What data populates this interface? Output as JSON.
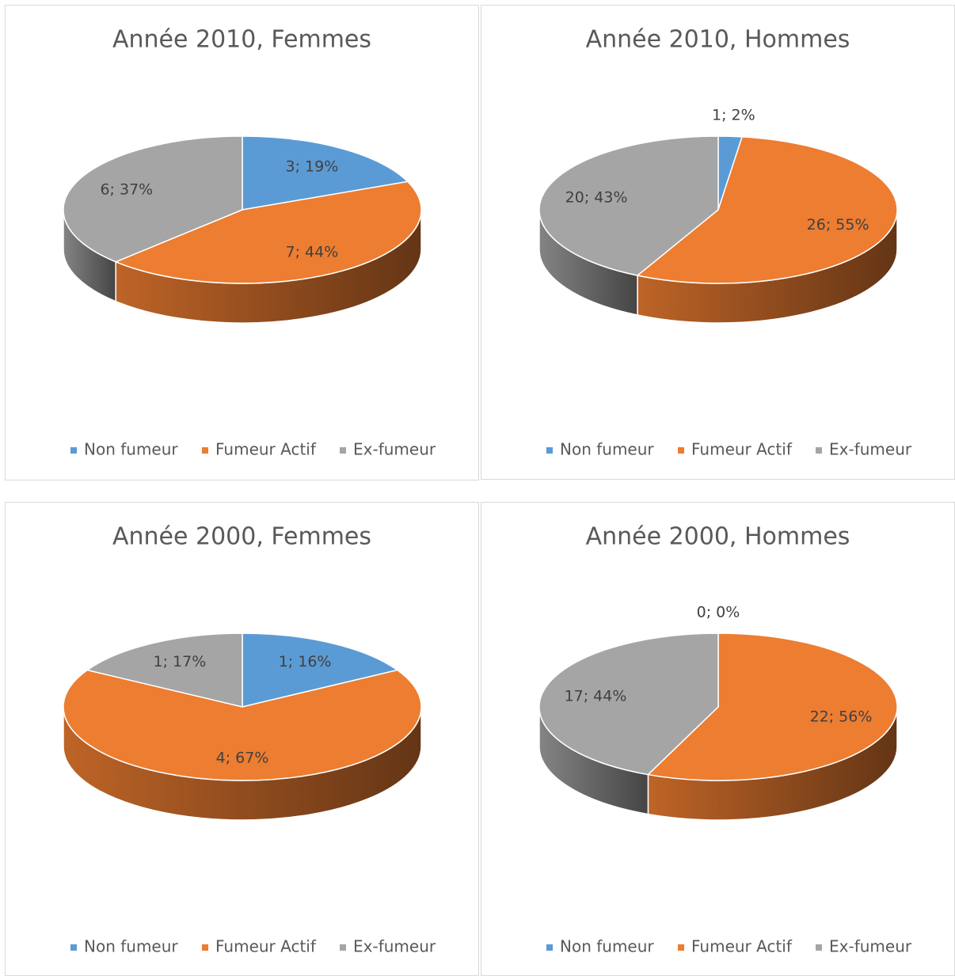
{
  "chart_data": [
    {
      "type": "pie",
      "title": "Année 2010, Femmes",
      "categories": [
        "Non fumeur",
        "Fumeur Actif",
        "Ex-fumeur"
      ],
      "colors": [
        "#5b9bd5",
        "#ed7d31",
        "#a5a5a5"
      ],
      "values": [
        3,
        7,
        6
      ],
      "value_labels": [
        "3; 19%",
        "7; 44%",
        "6; 37%"
      ]
    },
    {
      "type": "pie",
      "title": "Année 2010, Hommes",
      "categories": [
        "Non fumeur",
        "Fumeur Actif",
        "Ex-fumeur"
      ],
      "colors": [
        "#5b9bd5",
        "#ed7d31",
        "#a5a5a5"
      ],
      "values": [
        1,
        26,
        20
      ],
      "value_labels": [
        "1; 2%",
        "26; 55%",
        "20; 43%"
      ]
    },
    {
      "type": "pie",
      "title": "Année 2000, Femmes",
      "categories": [
        "Non fumeur",
        "Fumeur Actif",
        "Ex-fumeur"
      ],
      "colors": [
        "#5b9bd5",
        "#ed7d31",
        "#a5a5a5"
      ],
      "values": [
        1,
        4,
        1
      ],
      "value_labels": [
        "1; 16%",
        "4; 67%",
        "1; 17%"
      ]
    },
    {
      "type": "pie",
      "title": "Année 2000, Hommes",
      "categories": [
        "Non fumeur",
        "Fumeur Actif",
        "Ex-fumeur"
      ],
      "colors": [
        "#5b9bd5",
        "#ed7d31",
        "#a5a5a5"
      ],
      "values": [
        0,
        22,
        17
      ],
      "value_labels": [
        "0; 0%",
        "22; 56%",
        "17; 44%"
      ]
    }
  ]
}
